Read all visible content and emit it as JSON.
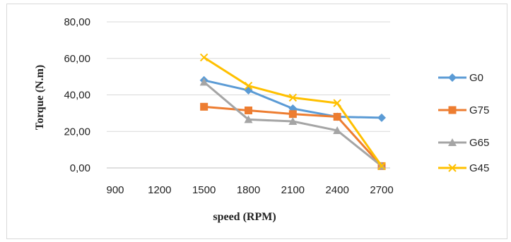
{
  "chart_data": {
    "type": "line",
    "title": "",
    "xlabel": "speed (RPM)",
    "ylabel": "Torque (N.m)",
    "categories": [
      "900",
      "1200",
      "1500",
      "1800",
      "2100",
      "2400",
      "2700"
    ],
    "y_ticks": [
      "0,00",
      "20,00",
      "40,00",
      "60,00",
      "80,00"
    ],
    "ylim": [
      0,
      80
    ],
    "grid": "horizontal",
    "legend_position": "right",
    "series": [
      {
        "name": "G0",
        "color": "#5b9bd5",
        "marker": "diamond",
        "values": [
          null,
          null,
          48.0,
          42.5,
          32.5,
          28.0,
          27.5
        ]
      },
      {
        "name": "G75",
        "color": "#ed7d31",
        "marker": "square",
        "values": [
          null,
          null,
          33.5,
          31.5,
          29.5,
          28.0,
          1.0
        ]
      },
      {
        "name": "G65",
        "color": "#a5a5a5",
        "marker": "triangle",
        "values": [
          null,
          null,
          47.0,
          26.5,
          25.5,
          20.5,
          1.0
        ]
      },
      {
        "name": "G45",
        "color": "#ffc000",
        "marker": "x",
        "values": [
          null,
          null,
          60.5,
          45.0,
          38.5,
          35.5,
          1.0
        ]
      }
    ]
  }
}
